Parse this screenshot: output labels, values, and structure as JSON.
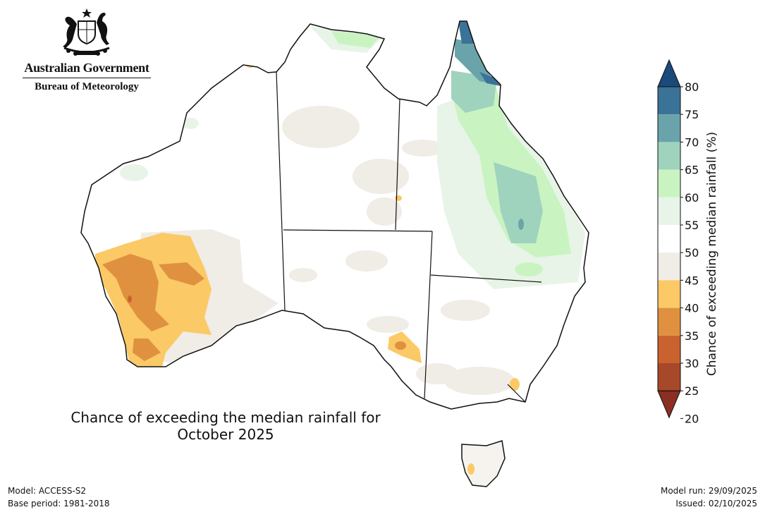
{
  "header": {
    "government": "Australian Government",
    "agency": "Bureau of Meteorology"
  },
  "map": {
    "title_line1": "Chance of exceeding the median rainfall for",
    "title_line2": "October 2025"
  },
  "colorbar": {
    "label": "Chance of exceeding median rainfall (%)",
    "ticks": [
      "80",
      "75",
      "70",
      "65",
      "60",
      "55",
      "50",
      "45",
      "40",
      "35",
      "30",
      "25",
      "20"
    ],
    "colors": [
      "#1a4a7a",
      "#3a7298",
      "#6aa4aa",
      "#9fd3bd",
      "#c9f4c2",
      "#e8f4e8",
      "#ffffff",
      "#f0ece6",
      "#fbc966",
      "#df913f",
      "#c9622f",
      "#a8482a",
      "#8a2f22"
    ]
  },
  "footer": {
    "model": "Model: ACCESS-S2",
    "base_period": "Base period: 1981-2018",
    "model_run": "Model run: 29/09/2025",
    "issued": "Issued: 02/10/2025"
  }
}
